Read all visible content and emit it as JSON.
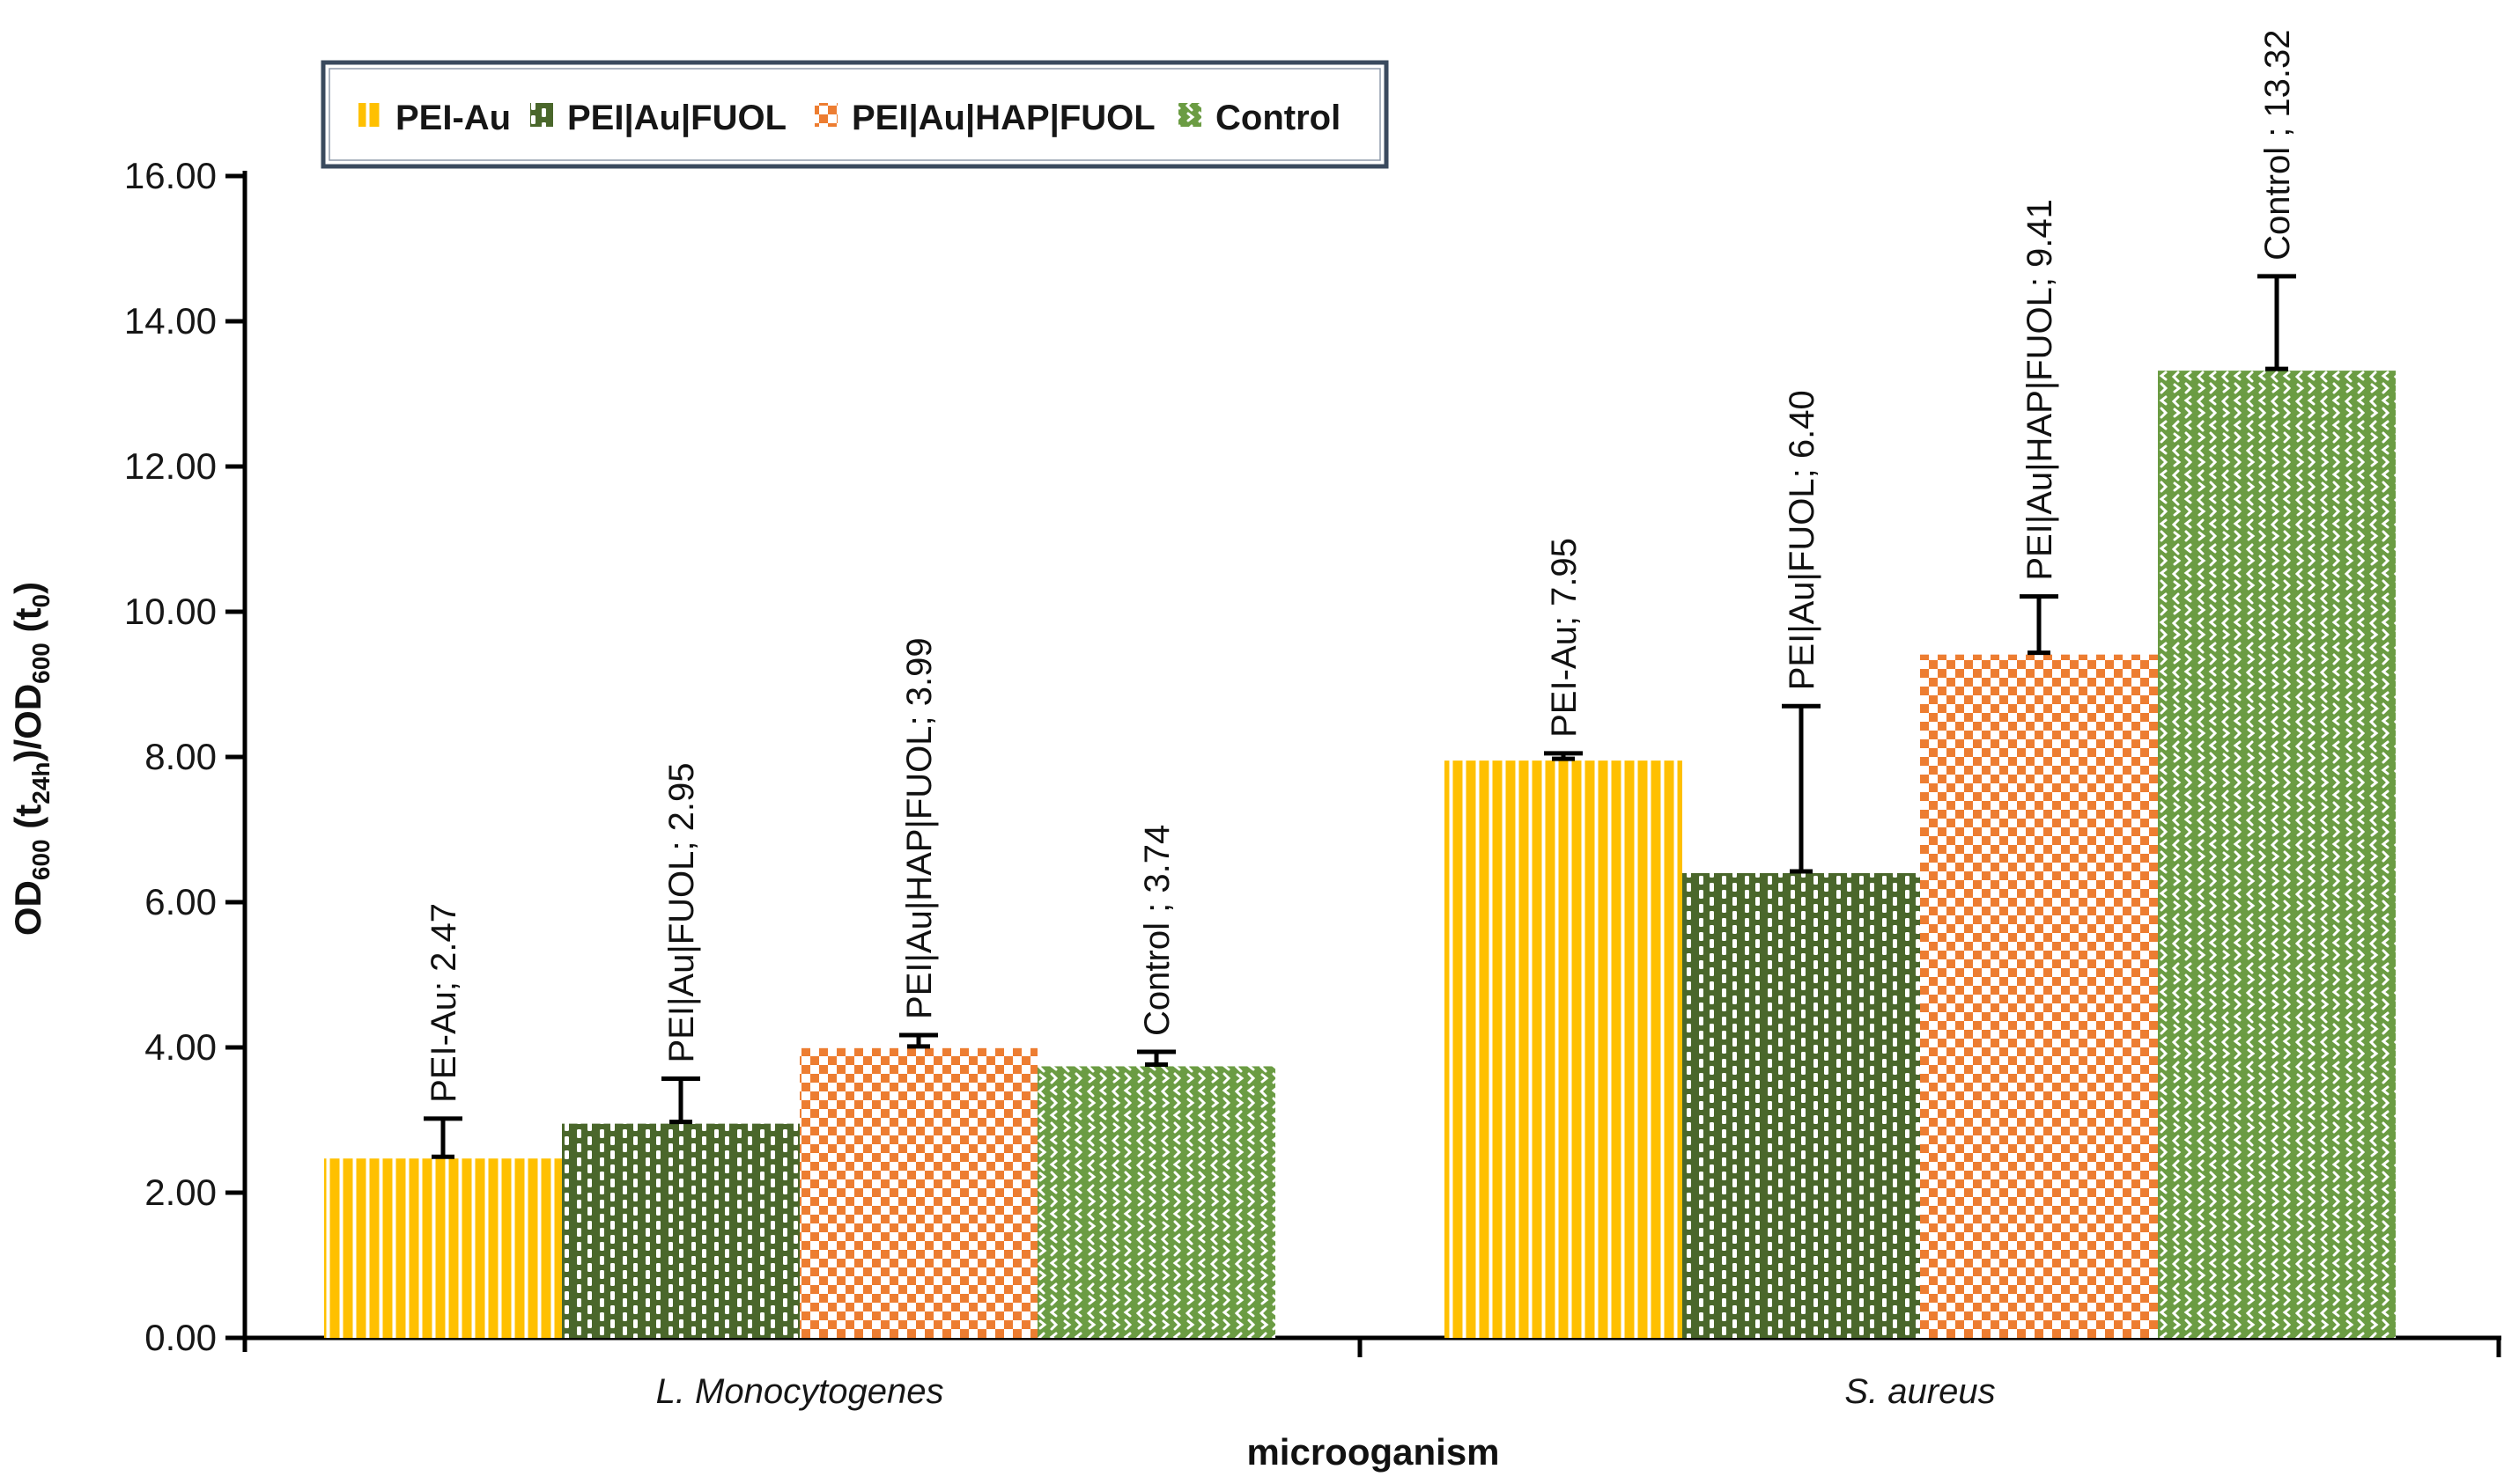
{
  "legend": {
    "border_color": "#3A4A5E",
    "items": [
      {
        "label": "PEI-Au",
        "swatch": "vstripe"
      },
      {
        "label": "PEI|Au|FUOL",
        "swatch": "vdash"
      },
      {
        "label": "PEI|Au|HAP|FUOL",
        "swatch": "checker"
      },
      {
        "label": "Control",
        "swatch": "weave"
      }
    ]
  },
  "chart_data": {
    "type": "bar",
    "title": "",
    "categories": [
      "L. Monocytogenes",
      "S. aureus"
    ],
    "series": [
      {
        "name": "PEI-Au",
        "color": "#FFC000",
        "pattern": "vstripe",
        "values": [
          2.47,
          7.95
        ],
        "err_upper": [
          0.55,
          0.1
        ]
      },
      {
        "name": "PEI|Au|FUOL",
        "color": "#4A672B",
        "pattern": "vdash",
        "values": [
          2.95,
          6.4
        ],
        "err_upper": [
          0.62,
          2.3
        ]
      },
      {
        "name": "PEI|Au|HAP|FUOL",
        "color": "#ED7D31",
        "pattern": "checker",
        "values": [
          3.99,
          9.41
        ],
        "err_upper": [
          0.18,
          0.8
        ]
      },
      {
        "name": "Control",
        "color": "#6B9C43",
        "pattern": "weave",
        "values": [
          3.74,
          13.32
        ],
        "err_upper": [
          0.2,
          1.3
        ]
      }
    ],
    "point_labels": [
      [
        "PEI-Au; 2.47",
        "PEI-Au; 7.95"
      ],
      [
        "PEI|Au|FUOL; 2.95",
        "PEI|Au|FUOL; 6.40"
      ],
      [
        "PEI|Au|HAP|FUOL; 3.99",
        "PEI|Au|HAP|FUOL; 9.41"
      ],
      [
        "Control ; 3.74",
        "Control ; 13.32"
      ]
    ],
    "xlabel": "microoganism",
    "ylabel": "OD600 (t24h)/OD600 (t0)",
    "ylabel_parts": [
      {
        "t": "OD"
      },
      {
        "t": "600",
        "sub": true
      },
      {
        "t": " (t"
      },
      {
        "t": "24h",
        "sub": true
      },
      {
        "t": ")/OD"
      },
      {
        "t": "600",
        "sub": true
      },
      {
        "t": " (t"
      },
      {
        "t": "0",
        "sub": true
      },
      {
        "t": ")"
      }
    ],
    "ylim": [
      0,
      16
    ],
    "ytick_step": 2,
    "ytick_decimals": 2,
    "grid": false,
    "legend_position": "top-left",
    "axis_color": "#000000",
    "label_color": "#111111",
    "error_bars": "upper"
  }
}
